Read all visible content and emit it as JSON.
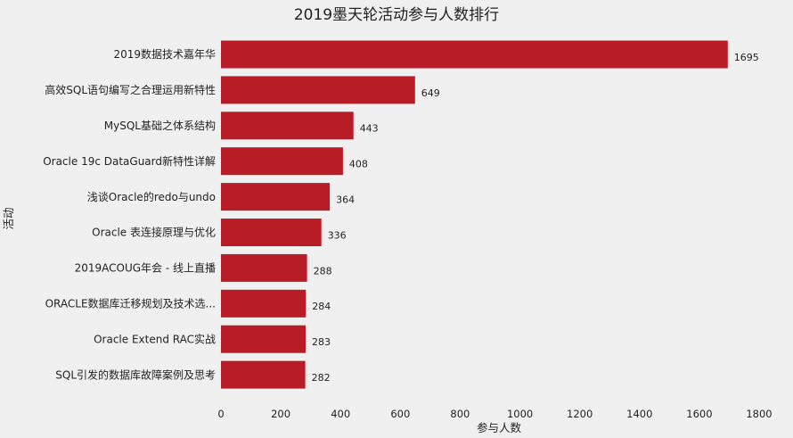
{
  "chart_data": {
    "type": "bar",
    "orientation": "horizontal",
    "title": "2019墨天轮活动参与人数排行",
    "xlabel": "参与人数",
    "ylabel": "活动",
    "categories": [
      "2019数据技术嘉年华",
      "高效SQL语句编写之合理运用新特性",
      "MySQL基础之体系结构",
      "Oracle 19c DataGuard新特性详解",
      "浅谈Oracle的redo与undo",
      "Oracle 表连接原理与优化",
      "2019ACOUG年会 - 线上直播",
      "ORACLE数据库迁移规划及技术选...",
      "Oracle Extend RAC实战",
      "SQL引发的数据库故障案例及思考"
    ],
    "values": [
      1695,
      649,
      443,
      408,
      364,
      336,
      288,
      284,
      283,
      282
    ],
    "xlim": [
      0,
      1800
    ],
    "xticks": [
      0,
      200,
      400,
      600,
      800,
      1000,
      1200,
      1400,
      1600,
      1800
    ],
    "bar_color": "#b71c27",
    "background": "#f0f0f0",
    "grid": false,
    "legend": "none",
    "data_labels": true
  }
}
